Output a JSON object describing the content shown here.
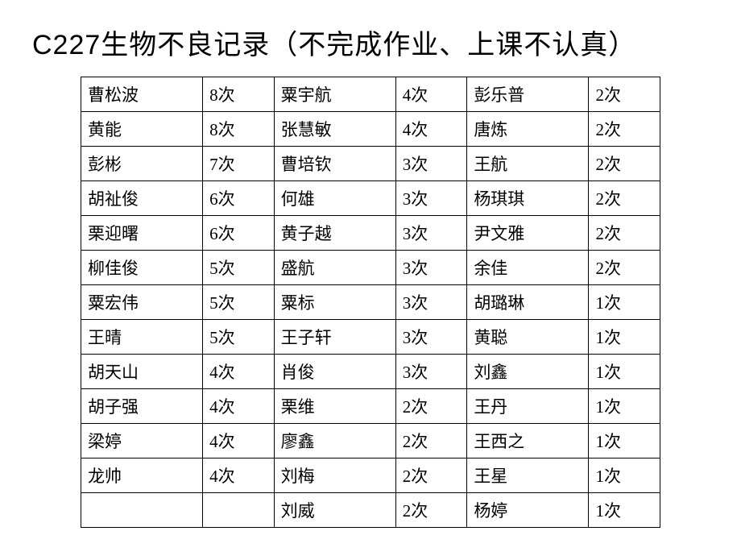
{
  "title": "C227生物不良记录（不完成作业、上课不认真）",
  "table": {
    "background_color": "#ffffff",
    "border_color": "#000000",
    "text_color": "#000000",
    "title_fontsize": 34,
    "cell_fontsize": 21,
    "rows": [
      [
        {
          "name": "曹松波",
          "count": "8次"
        },
        {
          "name": "粟宇航",
          "count": "4次"
        },
        {
          "name": "彭乐普",
          "count": "2次"
        }
      ],
      [
        {
          "name": "黄能",
          "count": "8次"
        },
        {
          "name": "张慧敏",
          "count": "4次"
        },
        {
          "name": "唐炼",
          "count": "2次"
        }
      ],
      [
        {
          "name": "彭彬",
          "count": "7次"
        },
        {
          "name": "曹培钦",
          "count": "3次"
        },
        {
          "name": "王航",
          "count": "2次"
        }
      ],
      [
        {
          "name": "胡祉俊",
          "count": "6次"
        },
        {
          "name": "何雄",
          "count": "3次"
        },
        {
          "name": "杨琪琪",
          "count": "2次"
        }
      ],
      [
        {
          "name": "栗迎曙",
          "count": "6次"
        },
        {
          "name": "黄子越",
          "count": "3次"
        },
        {
          "name": "尹文雅",
          "count": "2次"
        }
      ],
      [
        {
          "name": "柳佳俊",
          "count": "5次"
        },
        {
          "name": "盛航",
          "count": "3次"
        },
        {
          "name": "余佳",
          "count": "2次"
        }
      ],
      [
        {
          "name": "粟宏伟",
          "count": "5次"
        },
        {
          "name": "粟标",
          "count": "3次"
        },
        {
          "name": "胡璐琳",
          "count": "1次"
        }
      ],
      [
        {
          "name": "王晴",
          "count": "5次"
        },
        {
          "name": "王子轩",
          "count": "3次"
        },
        {
          "name": "黄聪",
          "count": "1次"
        }
      ],
      [
        {
          "name": "胡天山",
          "count": "4次"
        },
        {
          "name": "肖俊",
          "count": "3次"
        },
        {
          "name": "刘鑫",
          "count": "1次"
        }
      ],
      [
        {
          "name": "胡子强",
          "count": "4次"
        },
        {
          "name": "栗维",
          "count": "2次"
        },
        {
          "name": "王丹",
          "count": "1次"
        }
      ],
      [
        {
          "name": "梁婷",
          "count": "4次"
        },
        {
          "name": "廖鑫",
          "count": "2次"
        },
        {
          "name": "王西之",
          "count": "1次"
        }
      ],
      [
        {
          "name": "龙帅",
          "count": "4次"
        },
        {
          "name": "刘梅",
          "count": "2次"
        },
        {
          "name": "王星",
          "count": "1次"
        }
      ],
      [
        {
          "name": "",
          "count": ""
        },
        {
          "name": "刘威",
          "count": "2次"
        },
        {
          "name": "杨婷",
          "count": "1次"
        }
      ]
    ]
  }
}
